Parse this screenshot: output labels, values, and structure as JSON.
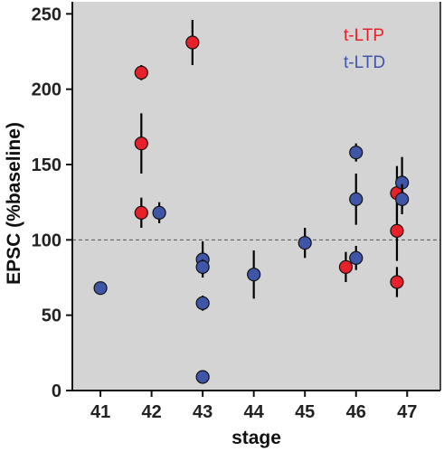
{
  "chart_data": {
    "type": "scatter",
    "xlabel": "stage",
    "ylabel": "EPSC (%baseline)",
    "xlim": [
      40.45,
      47.65
    ],
    "ylim": [
      0,
      258
    ],
    "x_ticks": [
      41,
      42,
      43,
      44,
      45,
      46,
      47
    ],
    "y_ticks": [
      0,
      50,
      100,
      150,
      200,
      250
    ],
    "reference_line": {
      "y": 100,
      "style": "dashed"
    },
    "background_color": "#d4d4d4",
    "series": [
      {
        "name": "t-LTP",
        "color": "#e8202a",
        "points": [
          {
            "x": 41.8,
            "y": 211,
            "err": 5
          },
          {
            "x": 41.8,
            "y": 164,
            "err": 20
          },
          {
            "x": 41.8,
            "y": 118,
            "err": 10
          },
          {
            "x": 42.8,
            "y": 231,
            "err": 15
          },
          {
            "x": 45.8,
            "y": 82,
            "err": 10
          },
          {
            "x": 46.8,
            "y": 131,
            "err": 18
          },
          {
            "x": 46.8,
            "y": 106,
            "err": 20
          },
          {
            "x": 46.8,
            "y": 72,
            "err": 10
          }
        ]
      },
      {
        "name": "t-LTD",
        "color": "#3f56a8",
        "points": [
          {
            "x": 41,
            "y": 68,
            "err": 0
          },
          {
            "x": 42.15,
            "y": 118,
            "err": 7
          },
          {
            "x": 43,
            "y": 87,
            "err": 12
          },
          {
            "x": 43,
            "y": 82,
            "err": 5
          },
          {
            "x": 43,
            "y": 58,
            "err": 5
          },
          {
            "x": 43,
            "y": 9,
            "err": 0
          },
          {
            "x": 44,
            "y": 77,
            "err": 16
          },
          {
            "x": 45,
            "y": 98,
            "err": 10
          },
          {
            "x": 46,
            "y": 158,
            "err": 6
          },
          {
            "x": 46,
            "y": 127,
            "err": 17
          },
          {
            "x": 46,
            "y": 88,
            "err": 8
          },
          {
            "x": 46.9,
            "y": 138,
            "err": 17
          },
          {
            "x": 46.9,
            "y": 127,
            "err": 10
          }
        ]
      }
    ],
    "legend": {
      "placement": "top-right",
      "entries": [
        {
          "label": "t-LTP",
          "color": "#e8202a"
        },
        {
          "label": "t-LTD",
          "color": "#3f56a8"
        }
      ]
    }
  }
}
